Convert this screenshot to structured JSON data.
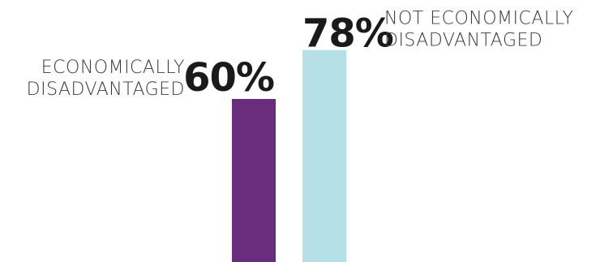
{
  "chart_data": {
    "type": "bar",
    "categories": [
      "ECONOMICALLY DISADVANTAGED",
      "NOT ECONOMICALLY DISADVANTAGED"
    ],
    "values": [
      60,
      78
    ],
    "value_labels": [
      "60%",
      "78%"
    ],
    "category_lines": [
      [
        "ECONOMICALLY",
        "DISADVANTAGED"
      ],
      [
        "NOT ECONOMICALLY",
        "DISADVANTAGED"
      ]
    ],
    "colors": [
      "#6a2d7e",
      "#b5e0e6"
    ],
    "title": "",
    "xlabel": "",
    "ylabel": "",
    "ylim": [
      0,
      100
    ],
    "grid": false,
    "legend": "none"
  }
}
